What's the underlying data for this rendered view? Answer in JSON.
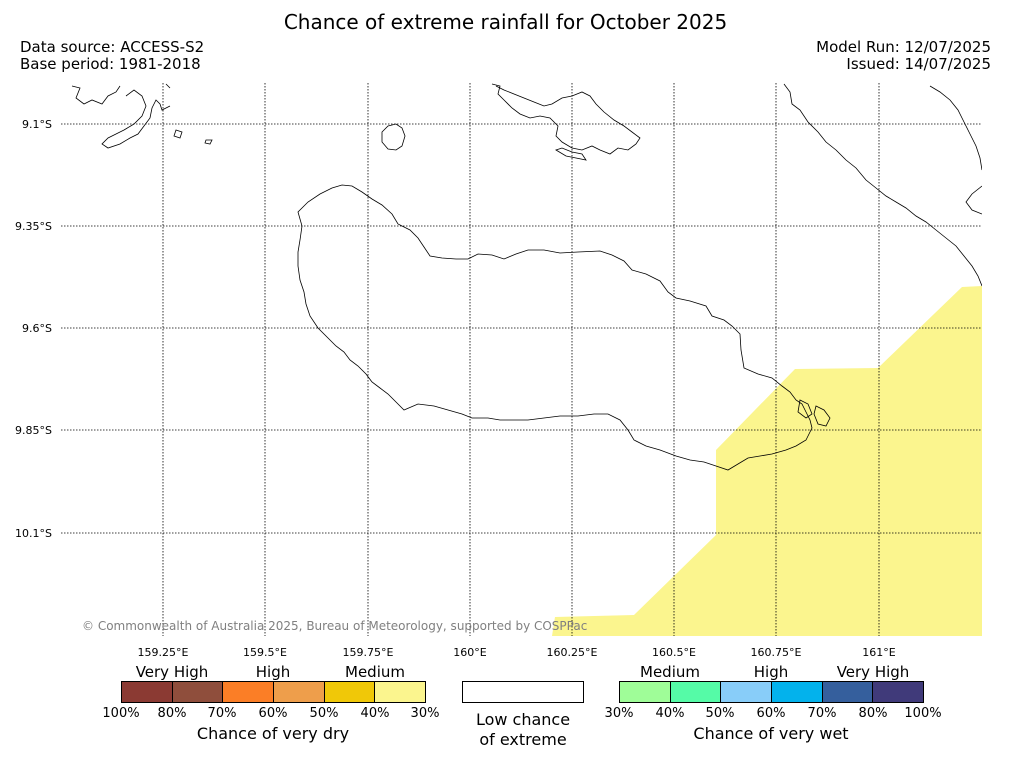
{
  "title": "Chance of extreme rainfall for October 2025",
  "data_source": "Data source: ACCESS-S2",
  "base_period": "Base period: 1981-2018",
  "model_run": "Model Run: 12/07/2025",
  "issued": "Issued: 14/07/2025",
  "map": {
    "lat_ticks": [
      "9.1°S",
      "9.35°S",
      "9.6°S",
      "9.85°S",
      "10.1°S"
    ],
    "lon_ticks": [
      "159.25°E",
      "159.5°E",
      "159.75°E",
      "160°E",
      "160.25°E",
      "160.5°E",
      "160.75°E",
      "161°E"
    ],
    "copyright": "© Commonwealth of Australia 2025, Bureau of Meteorology, supported by COSPPac",
    "shaded_category": "very-dry-30-40",
    "shaded_color": "#fbf58e",
    "coastline_color": "#000000",
    "gridline_color": "#000000"
  },
  "legend": {
    "dry": {
      "groups": [
        "Very High",
        "High",
        "Medium"
      ],
      "colors": [
        "#8b3a33",
        "#8f4e3c",
        "#fb7e26",
        "#ee9e4b",
        "#f0c808",
        "#fbf58e"
      ],
      "ticks": [
        "100%",
        "80%",
        "70%",
        "60%",
        "50%",
        "40%",
        "30%"
      ],
      "caption": "Chance of very dry"
    },
    "low": {
      "label_line1": "Low chance",
      "label_line2": "of extreme",
      "color": "#ffffff"
    },
    "wet": {
      "groups": [
        "Medium",
        "High",
        "Very High"
      ],
      "colors": [
        "#9ffd98",
        "#55fba7",
        "#88cdf9",
        "#03b2ec",
        "#355f9d",
        "#403a7a"
      ],
      "ticks": [
        "30%",
        "40%",
        "50%",
        "60%",
        "70%",
        "80%",
        "100%"
      ],
      "caption": "Chance of very wet"
    }
  }
}
